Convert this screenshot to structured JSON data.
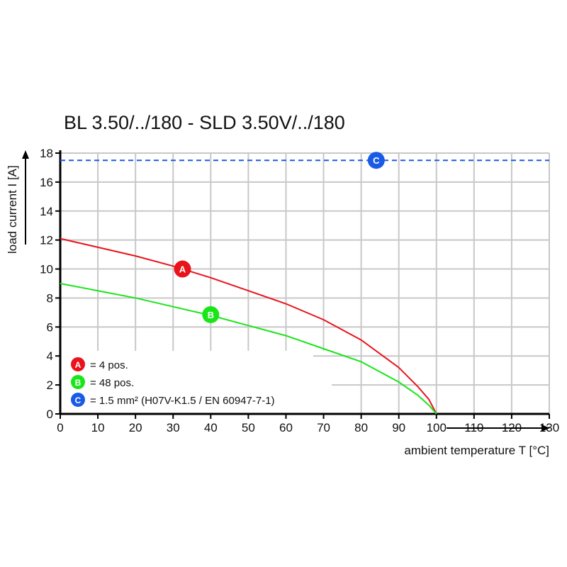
{
  "chart_data": {
    "type": "line",
    "title": "BL 3.50/../180 - SLD 3.50V/../180",
    "xlabel": "ambient temperature T [°C]",
    "ylabel": "load current I [A]",
    "xlim": [
      0,
      130
    ],
    "ylim": [
      0,
      18
    ],
    "xticks": [
      0,
      10,
      20,
      30,
      40,
      50,
      60,
      70,
      80,
      90,
      100,
      110,
      120,
      130
    ],
    "yticks": [
      0,
      2,
      4,
      6,
      8,
      10,
      12,
      14,
      16,
      18
    ],
    "grid": true,
    "series": [
      {
        "marker": "A",
        "color": "#e8131b",
        "x": [
          0,
          10,
          20,
          30,
          40,
          50,
          60,
          70,
          80,
          90,
          95,
          98,
          100
        ],
        "y": [
          12.1,
          11.5,
          10.9,
          10.2,
          9.4,
          8.5,
          7.6,
          6.5,
          5.1,
          3.2,
          1.9,
          1.0,
          0
        ]
      },
      {
        "marker": "B",
        "color": "#19e619",
        "x": [
          0,
          10,
          20,
          30,
          40,
          50,
          60,
          70,
          80,
          90,
          95,
          98,
          100
        ],
        "y": [
          9.0,
          8.5,
          8.0,
          7.4,
          6.8,
          6.1,
          5.4,
          4.5,
          3.6,
          2.2,
          1.3,
          0.6,
          0
        ]
      },
      {
        "marker": "C",
        "color": "#1a5be6",
        "dashed": true,
        "x": [
          0,
          130
        ],
        "y": [
          17.5,
          17.5
        ]
      }
    ],
    "markers": [
      {
        "label": "A",
        "x": 32.5,
        "y": 10.0,
        "color": "#e8131b"
      },
      {
        "label": "B",
        "x": 40,
        "y": 6.85,
        "color": "#19e619"
      },
      {
        "label": "C",
        "x": 84,
        "y": 17.5,
        "color": "#1a5be6"
      }
    ],
    "legend": {
      "placement": "bottom-left",
      "entries": [
        {
          "label": "A",
          "text": "= 4 pos.",
          "color": "#e8131b"
        },
        {
          "label": "B",
          "text": "= 48 pos.",
          "color": "#19e619"
        },
        {
          "label": "C",
          "text": "= 1.5 mm² (H07V-K1.5 / EN 60947-7-1)",
          "color": "#1a5be6"
        }
      ]
    }
  }
}
